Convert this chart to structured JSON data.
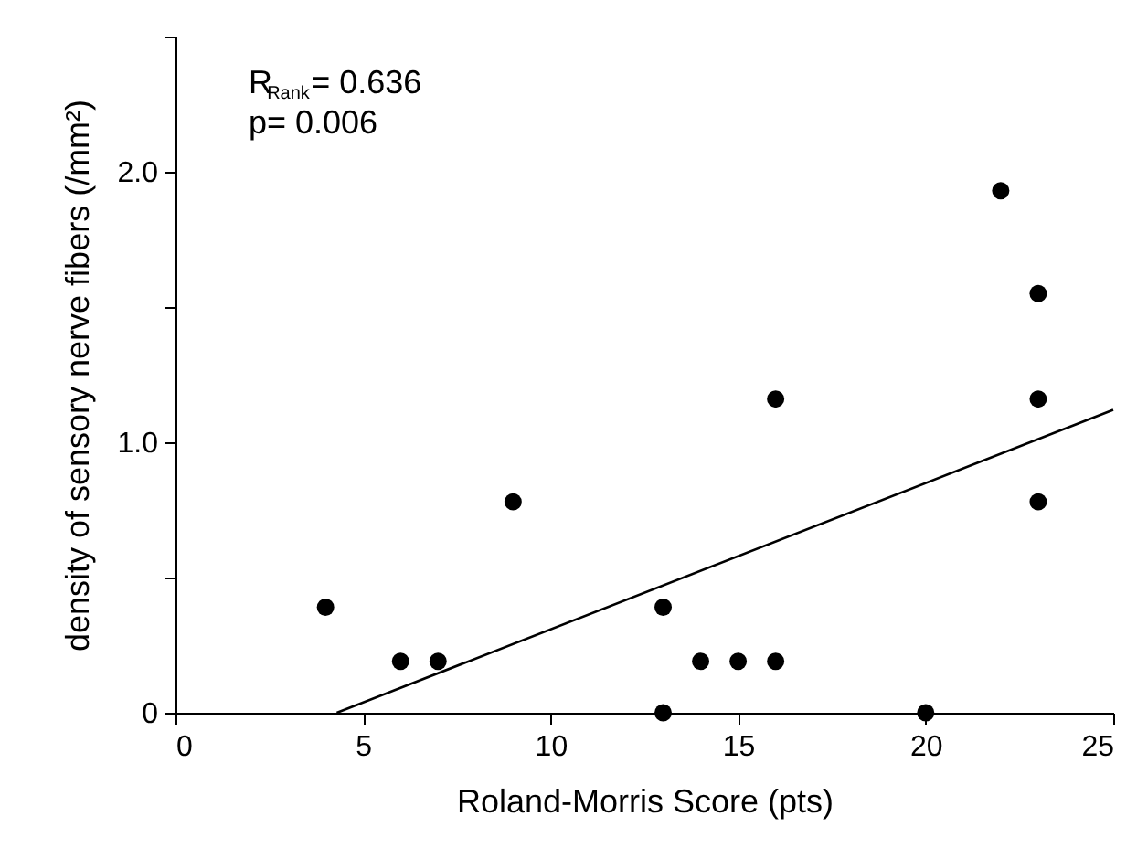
{
  "chart_data": {
    "type": "scatter",
    "xlabel": "Roland-Morris Score (pts)",
    "ylabel": "density of sensory nerve fibers (/mm²)",
    "annotations": [
      "R$_{Rank}$= 0.636",
      "p= 0.006"
    ],
    "series": [
      {
        "color": "#000000",
        "marker": "circle",
        "x": [
          4,
          6,
          7,
          9,
          13,
          13,
          14,
          15,
          16,
          16,
          20,
          22,
          23,
          23,
          23
        ],
        "values": [
          0.39,
          0.19,
          0.19,
          0.78,
          0.39,
          0,
          0.19,
          0.19,
          0.19,
          1.16,
          0,
          1.93,
          1.55,
          1.16,
          0.78
        ]
      },
      {
        "type": "line",
        "color": "#000000",
        "line_style": "solid",
        "x": [
          4.3,
          25
        ],
        "values": [
          0,
          1.12
        ]
      }
    ],
    "xlim": [
      0,
      25
    ],
    "xticks": [
      0,
      5,
      10,
      15,
      20,
      25
    ],
    "ylim": [
      0,
      2.5
    ],
    "yticks": [
      0,
      {
        "value": 0.5,
        "label": null
      },
      {
        "value": 1,
        "label": "1.0"
      },
      {
        "value": 1.5,
        "label": null
      },
      {
        "value": 2,
        "label": "2.0"
      },
      {
        "value": 2.5,
        "label": null
      }
    ],
    "grid": false
  }
}
